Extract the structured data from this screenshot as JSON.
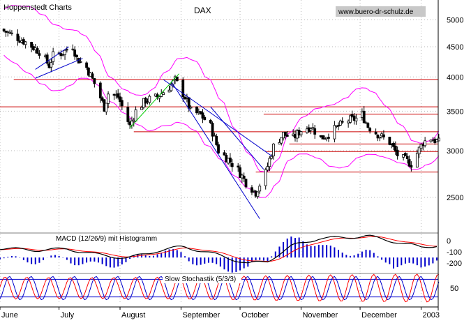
{
  "header": {
    "publisher": "Hoppenstedt Charts",
    "title": "DAX",
    "website": "www.buero-dr-schulz.de"
  },
  "colors": {
    "background": "#ffffff",
    "grid": "#b4b4b4",
    "price": "#000000",
    "bollinger": "#ff00ff",
    "support_resistance": "#cc0000",
    "trend_lines": "#0000cc",
    "green_trend": "#00cc00",
    "macd_line": "#000000",
    "signal_line": "#ff0000",
    "histogram": "#0000cc",
    "stoch_fast": "#ff0000",
    "stoch_slow": "#0000cc",
    "stoch_bands": "#0000cc"
  },
  "chart_data": [
    {
      "type": "candlestick",
      "title": "DAX",
      "y_scale": "log",
      "ylim": [
        2200,
        5400
      ],
      "y_ticks": [
        2500,
        3000,
        3500,
        4000,
        4500,
        5000
      ],
      "x_labels": [
        "June",
        "July",
        "August",
        "September",
        "October",
        "November",
        "December",
        "2003"
      ],
      "x_range": [
        "2002-06-01",
        "2003-01-10"
      ],
      "x_label_dates": [
        "2002-06-01",
        "2002-07-01",
        "2002-08-01",
        "2002-09-01",
        "2002-10-01",
        "2002-11-01",
        "2002-12-01",
        "2003-01-01"
      ],
      "close_path": [
        [
          "2002-06-01",
          4820
        ],
        [
          "2002-06-07",
          4720
        ],
        [
          "2002-06-14",
          4580
        ],
        [
          "2002-06-21",
          4420
        ],
        [
          "2002-06-26",
          4180
        ],
        [
          "2002-06-28",
          4350
        ],
        [
          "2002-07-03",
          4400
        ],
        [
          "2002-07-08",
          4520
        ],
        [
          "2002-07-10",
          4300
        ],
        [
          "2002-07-15",
          4150
        ],
        [
          "2002-07-19",
          3900
        ],
        [
          "2002-07-24",
          3550
        ],
        [
          "2002-07-26",
          3750
        ],
        [
          "2002-07-31",
          3700
        ],
        [
          "2002-08-06",
          3300
        ],
        [
          "2002-08-09",
          3500
        ],
        [
          "2002-08-14",
          3650
        ],
        [
          "2002-08-20",
          3700
        ],
        [
          "2002-08-26",
          3850
        ],
        [
          "2002-08-29",
          3950
        ],
        [
          "2002-09-03",
          3700
        ],
        [
          "2002-09-06",
          3500
        ],
        [
          "2002-09-11",
          3450
        ],
        [
          "2002-09-16",
          3300
        ],
        [
          "2002-09-20",
          3000
        ],
        [
          "2002-09-25",
          2900
        ],
        [
          "2002-09-30",
          2780
        ],
        [
          "2002-10-04",
          2650
        ],
        [
          "2002-10-09",
          2550
        ],
        [
          "2002-10-14",
          2750
        ],
        [
          "2002-10-18",
          3050
        ],
        [
          "2002-10-23",
          3200
        ],
        [
          "2002-10-28",
          3150
        ],
        [
          "2002-11-01",
          3250
        ],
        [
          "2002-11-06",
          3300
        ],
        [
          "2002-11-11",
          3150
        ],
        [
          "2002-11-15",
          3200
        ],
        [
          "2002-11-20",
          3300
        ],
        [
          "2002-11-25",
          3380
        ],
        [
          "2002-11-29",
          3400
        ],
        [
          "2002-12-02",
          3450
        ],
        [
          "2002-12-05",
          3300
        ],
        [
          "2002-12-10",
          3200
        ],
        [
          "2002-12-16",
          3100
        ],
        [
          "2002-12-20",
          2950
        ],
        [
          "2002-12-27",
          2850
        ],
        [
          "2003-01-02",
          3100
        ],
        [
          "2003-01-06",
          3150
        ],
        [
          "2003-01-10",
          3100
        ]
      ],
      "horizontal_lines": [
        {
          "value": 3960,
          "from": "2002-06-08",
          "to": "2003-01-30"
        },
        {
          "value": 3560,
          "from": "2002-06-01",
          "to": "2003-01-30"
        },
        {
          "value": 3460,
          "from": "2002-10-13",
          "to": "2003-01-30"
        },
        {
          "value": 3230,
          "from": "2002-08-08",
          "to": "2003-01-30"
        },
        {
          "value": 3080,
          "from": "2002-10-26",
          "to": "2003-01-30"
        },
        {
          "value": 2990,
          "from": "2002-10-14",
          "to": "2003-01-30"
        },
        {
          "value": 2760,
          "from": "2002-10-09",
          "to": "2003-01-30"
        }
      ],
      "trend_lines": [
        {
          "from": [
            "2002-08-23",
            3960
          ],
          "to": [
            "2002-10-17",
            2940
          ]
        },
        {
          "from": [
            "2002-08-27",
            3930
          ],
          "to": [
            "2002-10-11",
            2300
          ]
        },
        {
          "from": [
            "2002-09-16",
            3560
          ],
          "to": [
            "2002-10-13",
            2790
          ]
        },
        {
          "from": [
            "2002-06-19",
            4120
          ],
          "to": [
            "2002-07-06",
            4500
          ]
        },
        {
          "from": [
            "2002-06-19",
            3980
          ],
          "to": [
            "2002-07-13",
            4300
          ]
        }
      ],
      "green_line": {
        "from": [
          "2002-08-06",
          3280
        ],
        "to": [
          "2002-08-31",
          4050
        ]
      },
      "bollinger_band_width": 0.09
    },
    {
      "type": "line",
      "title": "MACD (12/26/9) mit Histogramm",
      "y_ticks": [
        "0",
        "-100",
        "-200"
      ],
      "ylim": [
        -250,
        80
      ],
      "series": [
        {
          "name": "MACD",
          "style": "line"
        },
        {
          "name": "Signal",
          "style": "line"
        },
        {
          "name": "Histogramm",
          "style": "bars"
        }
      ],
      "macd_path": [
        [
          "2002-06-01",
          -45
        ],
        [
          "2002-06-20",
          -60
        ],
        [
          "2002-07-05",
          -50
        ],
        [
          "2002-07-20",
          -95
        ],
        [
          "2002-08-05",
          -125
        ],
        [
          "2002-08-20",
          -65
        ],
        [
          "2002-09-02",
          -30
        ],
        [
          "2002-09-20",
          -100
        ],
        [
          "2002-10-05",
          -170
        ],
        [
          "2002-10-15",
          -150
        ],
        [
          "2002-10-28",
          -20
        ],
        [
          "2002-11-10",
          35
        ],
        [
          "2002-11-25",
          45
        ],
        [
          "2002-12-05",
          55
        ],
        [
          "2002-12-20",
          5
        ],
        [
          "2003-01-01",
          -35
        ],
        [
          "2003-01-10",
          -20
        ]
      ]
    },
    {
      "type": "line",
      "title": "Slow Stochastik (5/3/3)",
      "y_ticks": [
        "50"
      ],
      "ylim": [
        0,
        100
      ],
      "bands": [
        80,
        20
      ],
      "oscillation_period_days": 11
    }
  ]
}
